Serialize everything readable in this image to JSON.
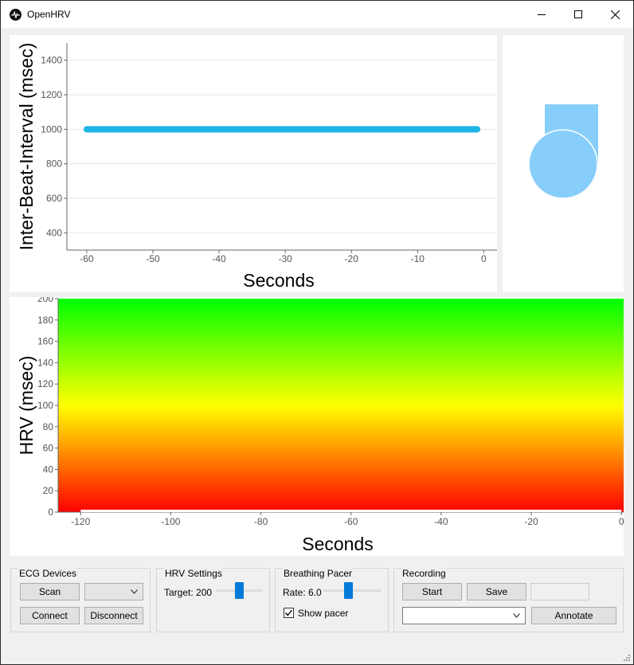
{
  "window": {
    "title": "OpenHRV",
    "icons": {
      "app": "heartbeat-icon",
      "minimize": "minimize-icon",
      "maximize": "maximize-icon",
      "close": "close-icon"
    }
  },
  "ibi_plot": {
    "chart_data": {
      "type": "line",
      "title": "",
      "xlabel": "Seconds",
      "ylabel": "Inter-Beat-Interval (msec)",
      "xlim": [
        -63,
        2
      ],
      "ylim": [
        300,
        1500
      ],
      "xticks": [
        "-60",
        "-50",
        "-40",
        "-30",
        "-20",
        "-10",
        "0"
      ],
      "yticks": [
        "400",
        "600",
        "800",
        "1000",
        "1200",
        "1400"
      ],
      "series": [
        {
          "x": [
            -60,
            -1
          ],
          "y": [
            1000,
            1000
          ],
          "color": "#1cb5e8"
        }
      ],
      "grid": "horizontal"
    }
  },
  "pacer_view": {
    "color": "#87cefa"
  },
  "hrv_plot": {
    "chart_data": {
      "type": "area",
      "title": "",
      "xlabel": "Seconds",
      "ylabel": "HRV (msec)",
      "xlim": [
        -125,
        0.5
      ],
      "ylim": [
        0,
        200
      ],
      "xticks": [
        "-120",
        "-100",
        "-80",
        "-60",
        "-40",
        "-20",
        "0"
      ],
      "yticks": [
        "0",
        "20",
        "40",
        "60",
        "80",
        "100",
        "120",
        "140",
        "160",
        "180",
        "200"
      ],
      "background_gradient": [
        "#ff0000",
        "#ffff00",
        "#00ff00"
      ],
      "series": [
        {
          "x": [
            -120,
            0
          ],
          "y": [
            0,
            0
          ],
          "color": "#ffffff"
        }
      ]
    }
  },
  "controls": {
    "ecg": {
      "title": "ECG Devices",
      "scan": "Scan",
      "connect": "Connect",
      "disconnect": "Disconnect",
      "device_select": ""
    },
    "hrv": {
      "title": "HRV Settings",
      "target_label": "Target: 200",
      "target_value": 200,
      "target_min": 0,
      "target_max": 400
    },
    "pacer": {
      "title": "Breathing Pacer",
      "rate_label": "Rate: 6.0",
      "rate_value": 6.0,
      "rate_min": 3,
      "rate_max": 10,
      "show_pacer": "Show pacer",
      "show_pacer_checked": true
    },
    "recording": {
      "title": "Recording",
      "start": "Start",
      "save": "Save",
      "annotate": "Annotate",
      "annotation_select": ""
    }
  }
}
